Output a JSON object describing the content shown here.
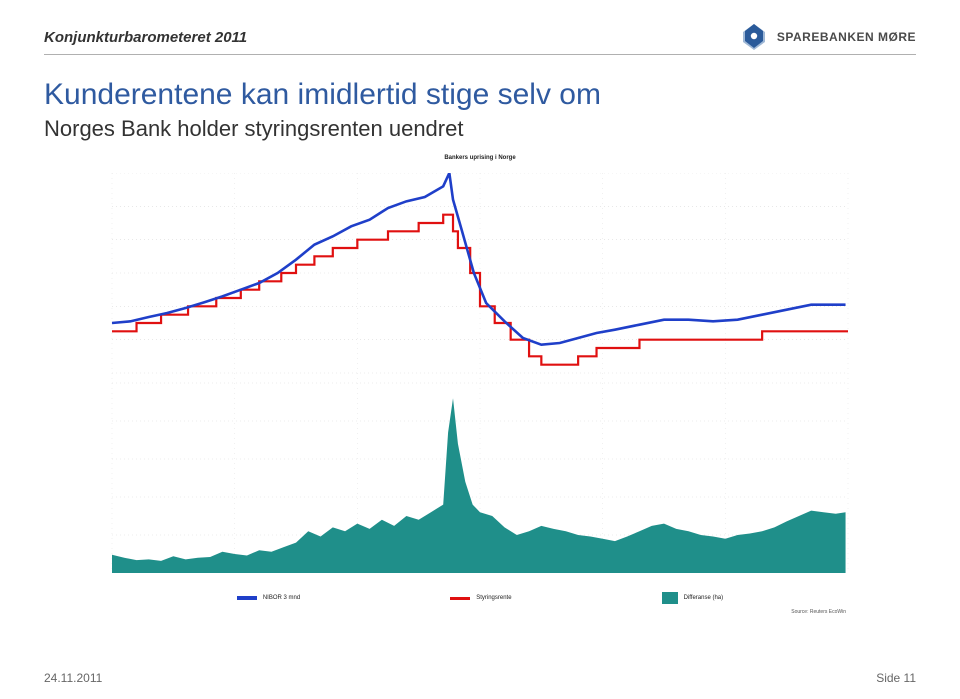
{
  "page": {
    "header_small": "Konjunkturbarometeret 2011",
    "logo_text": "SPAREBANKEN MØRE",
    "title": "Kunderentene kan imidlertid stige selv om",
    "subtitle": "Norges Bank holder styringsrenten uendret",
    "footer_date": "24.11.2011",
    "footer_page": "Side 11"
  },
  "colors": {
    "title": "#2f5aa0",
    "subtitle": "#333333",
    "footer": "#666666",
    "logo_blue": "#2a5a9a",
    "logo_shadow": "#9fb8d6",
    "rule": "#b0b0b0"
  },
  "chart": {
    "type": "combo-line-line-area",
    "title": "Bankers uprising i Norge",
    "source": "Source: Reuters EcoWin",
    "background_color": "#ffffff",
    "grid_color": "#d9d9d9",
    "grid_style": "dotted",
    "x": {
      "min": 2006,
      "max": 2012,
      "ticks": [
        2006,
        2007,
        2008,
        2009,
        2010,
        2011,
        2012
      ]
    },
    "y_left": {
      "min": 1,
      "max": 7,
      "step": 1
    },
    "y_right": {
      "min": 0.0,
      "max": 2.5,
      "step": 0.5
    },
    "series": {
      "nibor": {
        "label": "NIBOR 3 mnd",
        "color": "#1f3fc9",
        "width": 2.6,
        "axis": "left",
        "data": [
          [
            2006.0,
            2.5
          ],
          [
            2006.15,
            2.55
          ],
          [
            2006.3,
            2.68
          ],
          [
            2006.45,
            2.8
          ],
          [
            2006.6,
            2.95
          ],
          [
            2006.75,
            3.12
          ],
          [
            2006.9,
            3.3
          ],
          [
            2007.05,
            3.5
          ],
          [
            2007.2,
            3.7
          ],
          [
            2007.35,
            4.0
          ],
          [
            2007.5,
            4.4
          ],
          [
            2007.65,
            4.85
          ],
          [
            2007.8,
            5.1
          ],
          [
            2007.95,
            5.4
          ],
          [
            2008.1,
            5.6
          ],
          [
            2008.25,
            5.95
          ],
          [
            2008.4,
            6.15
          ],
          [
            2008.55,
            6.28
          ],
          [
            2008.7,
            6.6
          ],
          [
            2008.75,
            7.0
          ],
          [
            2008.78,
            6.2
          ],
          [
            2008.85,
            5.3
          ],
          [
            2008.95,
            4.0
          ],
          [
            2009.05,
            3.1
          ],
          [
            2009.2,
            2.55
          ],
          [
            2009.35,
            2.05
          ],
          [
            2009.5,
            1.85
          ],
          [
            2009.65,
            1.9
          ],
          [
            2009.8,
            2.05
          ],
          [
            2009.95,
            2.2
          ],
          [
            2010.1,
            2.3
          ],
          [
            2010.3,
            2.45
          ],
          [
            2010.5,
            2.6
          ],
          [
            2010.7,
            2.6
          ],
          [
            2010.9,
            2.55
          ],
          [
            2011.1,
            2.6
          ],
          [
            2011.3,
            2.75
          ],
          [
            2011.5,
            2.9
          ],
          [
            2011.7,
            3.05
          ],
          [
            2011.85,
            3.05
          ],
          [
            2011.98,
            3.05
          ]
        ]
      },
      "policy": {
        "label": "Styringsrente",
        "color": "#e01010",
        "width": 2.2,
        "axis": "left",
        "step": true,
        "data": [
          [
            2006.0,
            2.25
          ],
          [
            2006.2,
            2.5
          ],
          [
            2006.4,
            2.75
          ],
          [
            2006.62,
            3.0
          ],
          [
            2006.85,
            3.25
          ],
          [
            2007.05,
            3.5
          ],
          [
            2007.2,
            3.75
          ],
          [
            2007.38,
            4.0
          ],
          [
            2007.5,
            4.25
          ],
          [
            2007.65,
            4.5
          ],
          [
            2007.8,
            4.75
          ],
          [
            2008.0,
            5.0
          ],
          [
            2008.25,
            5.25
          ],
          [
            2008.5,
            5.5
          ],
          [
            2008.7,
            5.75
          ],
          [
            2008.78,
            5.25
          ],
          [
            2008.82,
            4.75
          ],
          [
            2008.92,
            4.0
          ],
          [
            2009.0,
            3.0
          ],
          [
            2009.12,
            2.5
          ],
          [
            2009.25,
            2.0
          ],
          [
            2009.4,
            1.5
          ],
          [
            2009.5,
            1.25
          ],
          [
            2009.8,
            1.5
          ],
          [
            2009.95,
            1.75
          ],
          [
            2010.3,
            2.0
          ],
          [
            2011.3,
            2.25
          ],
          [
            2011.98,
            2.25
          ]
        ]
      },
      "spread": {
        "label": "Differanse (ha)",
        "color": "#1f8f8a",
        "axis": "right",
        "area": true,
        "data": [
          [
            2006.0,
            0.24
          ],
          [
            2006.1,
            0.2
          ],
          [
            2006.2,
            0.17
          ],
          [
            2006.3,
            0.18
          ],
          [
            2006.4,
            0.16
          ],
          [
            2006.5,
            0.22
          ],
          [
            2006.6,
            0.18
          ],
          [
            2006.7,
            0.2
          ],
          [
            2006.8,
            0.21
          ],
          [
            2006.9,
            0.28
          ],
          [
            2007.0,
            0.25
          ],
          [
            2007.1,
            0.23
          ],
          [
            2007.2,
            0.3
          ],
          [
            2007.3,
            0.28
          ],
          [
            2007.4,
            0.34
          ],
          [
            2007.5,
            0.4
          ],
          [
            2007.6,
            0.55
          ],
          [
            2007.7,
            0.48
          ],
          [
            2007.8,
            0.6
          ],
          [
            2007.9,
            0.55
          ],
          [
            2008.0,
            0.65
          ],
          [
            2008.1,
            0.58
          ],
          [
            2008.2,
            0.7
          ],
          [
            2008.3,
            0.62
          ],
          [
            2008.4,
            0.75
          ],
          [
            2008.5,
            0.7
          ],
          [
            2008.6,
            0.8
          ],
          [
            2008.7,
            0.9
          ],
          [
            2008.74,
            1.85
          ],
          [
            2008.78,
            2.3
          ],
          [
            2008.82,
            1.7
          ],
          [
            2008.88,
            1.2
          ],
          [
            2008.94,
            0.9
          ],
          [
            2009.0,
            0.8
          ],
          [
            2009.1,
            0.75
          ],
          [
            2009.2,
            0.6
          ],
          [
            2009.3,
            0.5
          ],
          [
            2009.4,
            0.55
          ],
          [
            2009.5,
            0.62
          ],
          [
            2009.6,
            0.58
          ],
          [
            2009.7,
            0.55
          ],
          [
            2009.8,
            0.5
          ],
          [
            2009.9,
            0.48
          ],
          [
            2010.0,
            0.45
          ],
          [
            2010.1,
            0.42
          ],
          [
            2010.2,
            0.48
          ],
          [
            2010.3,
            0.55
          ],
          [
            2010.4,
            0.62
          ],
          [
            2010.5,
            0.65
          ],
          [
            2010.6,
            0.58
          ],
          [
            2010.7,
            0.55
          ],
          [
            2010.8,
            0.5
          ],
          [
            2010.9,
            0.48
          ],
          [
            2011.0,
            0.45
          ],
          [
            2011.1,
            0.5
          ],
          [
            2011.2,
            0.52
          ],
          [
            2011.3,
            0.55
          ],
          [
            2011.4,
            0.6
          ],
          [
            2011.5,
            0.68
          ],
          [
            2011.6,
            0.75
          ],
          [
            2011.7,
            0.82
          ],
          [
            2011.8,
            0.8
          ],
          [
            2011.9,
            0.78
          ],
          [
            2011.98,
            0.8
          ]
        ]
      }
    },
    "legend_items": [
      "NIBOR 3 mnd",
      "Styringsrente",
      "Differanse (ha)"
    ]
  }
}
